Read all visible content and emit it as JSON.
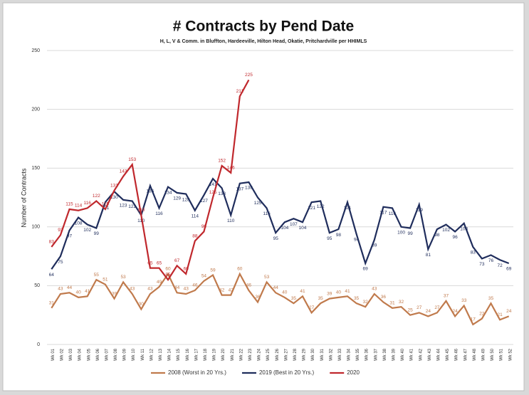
{
  "chart_data": {
    "type": "line",
    "title": "# Contracts by Pend Date",
    "subtitle": "H, L, V & Comm. in Bluffton, Hardeeville, Hilton Head, Okatie, Pritchardville per HHIMLS",
    "y_label": "Number of Contracts",
    "categories": [
      "Wk 01",
      "Wk 02",
      "Wk 03",
      "Wk 04",
      "Wk 05",
      "Wk 06",
      "Wk 07",
      "Wk 08",
      "Wk 09",
      "Wk 10",
      "Wk 11",
      "Wk 12",
      "Wk 13",
      "Wk 14",
      "Wk 15",
      "Wk 16",
      "Wk 17",
      "Wk 18",
      "Wk 19",
      "Wk 20",
      "Wk 21",
      "Wk 22",
      "Wk 23",
      "Wk 24",
      "Wk 25",
      "Wk 26",
      "Wk 27",
      "Wk 28",
      "Wk 29",
      "Wk 30",
      "Wk 31",
      "Wk 32",
      "Wk 33",
      "Wk 34",
      "Wk 35",
      "Wk 36",
      "Wk 37",
      "Wk 38",
      "Wk 39",
      "Wk 40",
      "Wk 41",
      "Wk 42",
      "Wk 43",
      "Wk 44",
      "Wk 45",
      "Wk 46",
      "Wk 47",
      "Wk 48",
      "Wk 49",
      "Wk 50",
      "Wk 51",
      "Wk 52"
    ],
    "series": [
      {
        "name": "2008 (Worst in 20 Yrs.)",
        "color": "#c07a4c",
        "values": [
          31,
          43,
          44,
          40,
          41,
          55,
          51,
          39,
          53,
          43,
          30,
          43,
          49,
          60,
          44,
          43,
          46,
          54,
          59,
          42,
          42,
          60,
          46,
          36,
          53,
          44,
          40,
          35,
          41,
          27,
          35,
          39,
          40,
          41,
          35,
          32,
          43,
          36,
          31,
          32,
          25,
          27,
          24,
          27,
          37,
          24,
          33,
          17,
          22,
          35,
          21,
          24
        ]
      },
      {
        "name": "2019 (Best in 20 Yrs.)",
        "color": "#1f2d5c",
        "values": [
          64,
          75,
          97,
          108,
          102,
          99,
          121,
          130,
          123,
          122,
          110,
          135,
          116,
          134,
          129,
          128,
          114,
          127,
          141,
          133,
          110,
          137,
          138,
          125,
          116,
          95,
          104,
          107,
          104,
          121,
          122,
          95,
          98,
          121,
          94,
          69,
          89,
          117,
          116,
          100,
          99,
          119,
          81,
          98,
          102,
          96,
          103,
          83,
          73,
          76,
          72,
          69
        ]
      },
      {
        "name": "2020",
        "color": "#c0282d",
        "values": [
          83,
          93,
          115,
          114,
          116,
          122,
          115,
          131,
          143,
          153,
          110,
          65,
          65,
          55,
          67,
          60,
          88,
          96,
          125,
          152,
          146,
          211,
          225,
          null,
          null,
          null,
          null,
          null,
          null,
          null,
          null,
          null,
          null,
          null,
          null,
          null,
          null,
          null,
          null,
          null,
          null,
          null,
          null,
          null,
          null,
          null,
          null,
          null,
          null,
          null,
          null,
          null
        ]
      }
    ],
    "ylim": [
      0,
      250
    ],
    "yticks": [
      0,
      50,
      100,
      150,
      200,
      250
    ],
    "grid": true,
    "legend": "bottom"
  }
}
